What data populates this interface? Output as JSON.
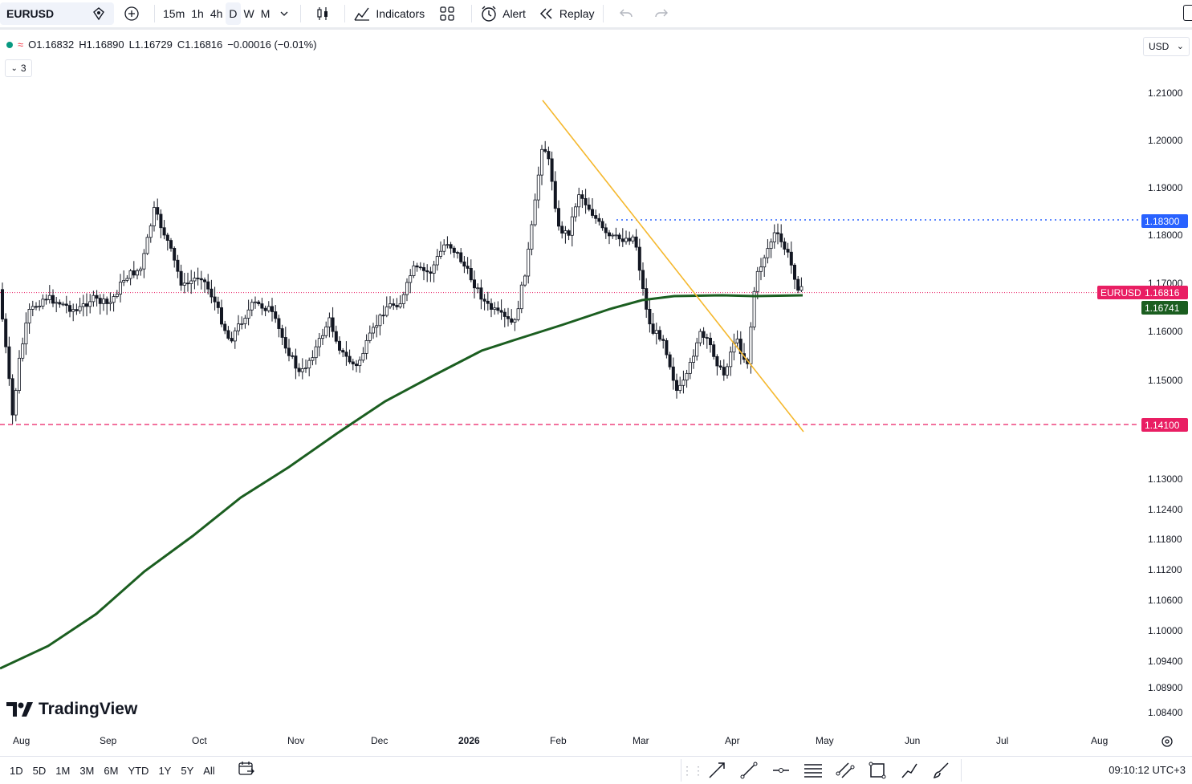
{
  "toolbar": {
    "symbol": "EURUSD",
    "intervals": [
      "15m",
      "1h",
      "4h",
      "D",
      "W",
      "M"
    ],
    "active_interval": "D",
    "indicators_label": "Indicators",
    "alert_label": "Alert",
    "replay_label": "Replay"
  },
  "legend": {
    "open": "O1.16832",
    "high": "H1.16890",
    "low": "L1.16729",
    "close": "C1.16816",
    "change": "−0.00016 (−0.01%)",
    "indicators_count": "3"
  },
  "currency": "USD",
  "price_axis": {
    "ticks": [
      "1.21000",
      "1.20000",
      "1.19000",
      "1.18000",
      "1.17000",
      "1.16000",
      "1.15000",
      "1.13000",
      "1.12400",
      "1.11800",
      "1.11200",
      "1.10600",
      "1.10000",
      "1.09400",
      "1.08900",
      "1.08400"
    ],
    "tags": {
      "resistance": "1.18300",
      "symbol_name": "EURUSD",
      "last_price": "1.16816",
      "ma_value": "1.16741",
      "support": "1.14100"
    }
  },
  "time_axis": {
    "labels": [
      "Aug",
      "Sep",
      "Oct",
      "Nov",
      "Dec",
      "2026",
      "Feb",
      "Mar",
      "Apr",
      "May",
      "Jun",
      "Jul",
      "Aug"
    ],
    "bold_label": "2026"
  },
  "branding": "TradingView",
  "bottom": {
    "ranges": [
      "1D",
      "5D",
      "1M",
      "3M",
      "6M",
      "YTD",
      "1Y",
      "5Y",
      "All"
    ],
    "clock": "09:10:12 UTC+3"
  },
  "colors": {
    "ma_line": "#1b5e20",
    "trendline": "#f5b82e",
    "resistance": "#2962ff",
    "support": "#e91e63",
    "up": "#26a69a",
    "candle": "#131722"
  },
  "chart_data": {
    "type": "candlestick",
    "symbol": "EURUSD",
    "interval": "D",
    "current_price": 1.16816,
    "ma_value": 1.16741,
    "horizontal_levels": [
      1.183,
      1.141
    ],
    "trendline": {
      "from": {
        "date": "2026-01-27",
        "price": 1.209
      },
      "to": {
        "date": "2026-04-24",
        "price": 1.139
      }
    }
  }
}
